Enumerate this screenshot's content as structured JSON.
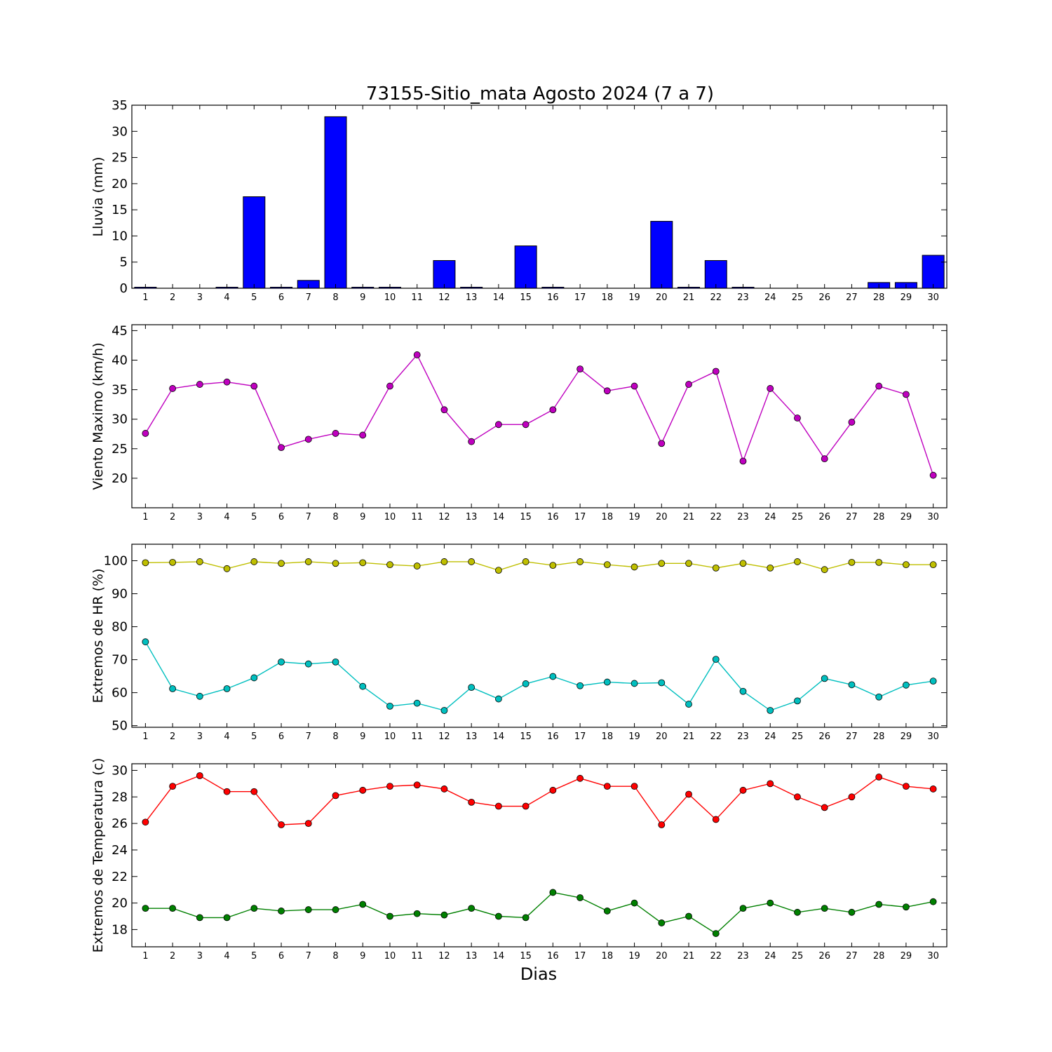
{
  "title": "73155-Sitio_mata Agosto 2024  (7 a 7)",
  "xlabel": "Dias",
  "chart_data": [
    {
      "type": "bar",
      "ylabel": "Lluvia (mm)",
      "ylim": [
        0,
        35
      ],
      "yticks": [
        0,
        5,
        10,
        15,
        20,
        25,
        30,
        35
      ],
      "categories": [
        1,
        2,
        3,
        4,
        5,
        6,
        7,
        8,
        9,
        10,
        11,
        12,
        13,
        14,
        15,
        16,
        17,
        18,
        19,
        20,
        21,
        22,
        23,
        24,
        25,
        26,
        27,
        28,
        29,
        30
      ],
      "series": [
        {
          "color": "#0000ff",
          "values": [
            0.2,
            0,
            0,
            0.2,
            17.5,
            0.2,
            1.5,
            32.8,
            0.2,
            0.2,
            0,
            5.3,
            0.2,
            0,
            8.1,
            0.2,
            0,
            0,
            0,
            12.8,
            0.2,
            5.3,
            0.2,
            0,
            0,
            0,
            0,
            1.1,
            1.1,
            6.3
          ]
        }
      ]
    },
    {
      "type": "line",
      "ylabel": "Viento Maximo (km/h)",
      "ylim": [
        15,
        46
      ],
      "yticks": [
        20,
        25,
        30,
        35,
        40,
        45
      ],
      "categories": [
        1,
        2,
        3,
        4,
        5,
        6,
        7,
        8,
        9,
        10,
        11,
        12,
        13,
        14,
        15,
        16,
        17,
        18,
        19,
        20,
        21,
        22,
        23,
        24,
        25,
        26,
        27,
        28,
        29,
        30
      ],
      "series": [
        {
          "color": "#bf00bf",
          "values": [
            27.6,
            35.2,
            35.9,
            36.3,
            35.6,
            25.2,
            26.6,
            27.6,
            27.3,
            35.6,
            40.9,
            31.6,
            26.2,
            29.1,
            29.1,
            31.6,
            38.5,
            34.8,
            35.6,
            25.9,
            35.9,
            38.1,
            22.9,
            35.2,
            30.2,
            23.3,
            29.5,
            35.6,
            34.2,
            20.5
          ]
        }
      ]
    },
    {
      "type": "line",
      "ylabel": "Extremos de HR (%)",
      "ylim": [
        49.5,
        105
      ],
      "yticks": [
        50,
        60,
        70,
        80,
        90,
        100
      ],
      "categories": [
        1,
        2,
        3,
        4,
        5,
        6,
        7,
        8,
        9,
        10,
        11,
        12,
        13,
        14,
        15,
        16,
        17,
        18,
        19,
        20,
        21,
        22,
        23,
        24,
        25,
        26,
        27,
        28,
        29,
        30
      ],
      "series": [
        {
          "color": "#bfbf00",
          "values": [
            99.4,
            99.5,
            99.7,
            97.6,
            99.7,
            99.2,
            99.7,
            99.2,
            99.4,
            98.8,
            98.4,
            99.7,
            99.7,
            97.1,
            99.7,
            98.6,
            99.7,
            98.8,
            98.1,
            99.2,
            99.2,
            97.8,
            99.2,
            97.8,
            99.7,
            97.3,
            99.5,
            99.5,
            98.8,
            98.8
          ]
        },
        {
          "color": "#00bfbf",
          "values": [
            75.4,
            61.2,
            58.9,
            61.2,
            64.5,
            69.3,
            68.7,
            69.3,
            61.9,
            55.9,
            56.8,
            54.6,
            61.6,
            58.1,
            62.7,
            64.9,
            62.1,
            63.2,
            62.8,
            63.0,
            56.5,
            70.1,
            60.4,
            54.6,
            57.5,
            64.3,
            62.4,
            58.7,
            62.3,
            63.5
          ]
        }
      ]
    },
    {
      "type": "line",
      "ylabel": "Extremos de Temperatura (c)",
      "ylim": [
        16.7,
        30.5
      ],
      "yticks": [
        18,
        20,
        22,
        24,
        26,
        28,
        30
      ],
      "categories": [
        1,
        2,
        3,
        4,
        5,
        6,
        7,
        8,
        9,
        10,
        11,
        12,
        13,
        14,
        15,
        16,
        17,
        18,
        19,
        20,
        21,
        22,
        23,
        24,
        25,
        26,
        27,
        28,
        29,
        30
      ],
      "series": [
        {
          "color": "#ff0000",
          "values": [
            26.1,
            28.8,
            29.6,
            28.4,
            28.4,
            25.9,
            26.0,
            28.1,
            28.5,
            28.8,
            28.9,
            28.6,
            27.6,
            27.3,
            27.3,
            28.5,
            29.4,
            28.8,
            28.8,
            25.9,
            28.2,
            26.3,
            28.5,
            29.0,
            28.0,
            27.2,
            28.0,
            29.5,
            28.8,
            28.6
          ]
        },
        {
          "color": "#008000",
          "values": [
            19.6,
            19.6,
            18.9,
            18.9,
            19.6,
            19.4,
            19.5,
            19.5,
            19.9,
            19.0,
            19.2,
            19.1,
            19.6,
            19.0,
            18.9,
            20.8,
            20.4,
            19.4,
            20.0,
            18.5,
            19.0,
            17.7,
            19.6,
            20.0,
            19.3,
            19.6,
            19.3,
            19.9,
            19.7,
            20.1
          ]
        }
      ]
    }
  ]
}
